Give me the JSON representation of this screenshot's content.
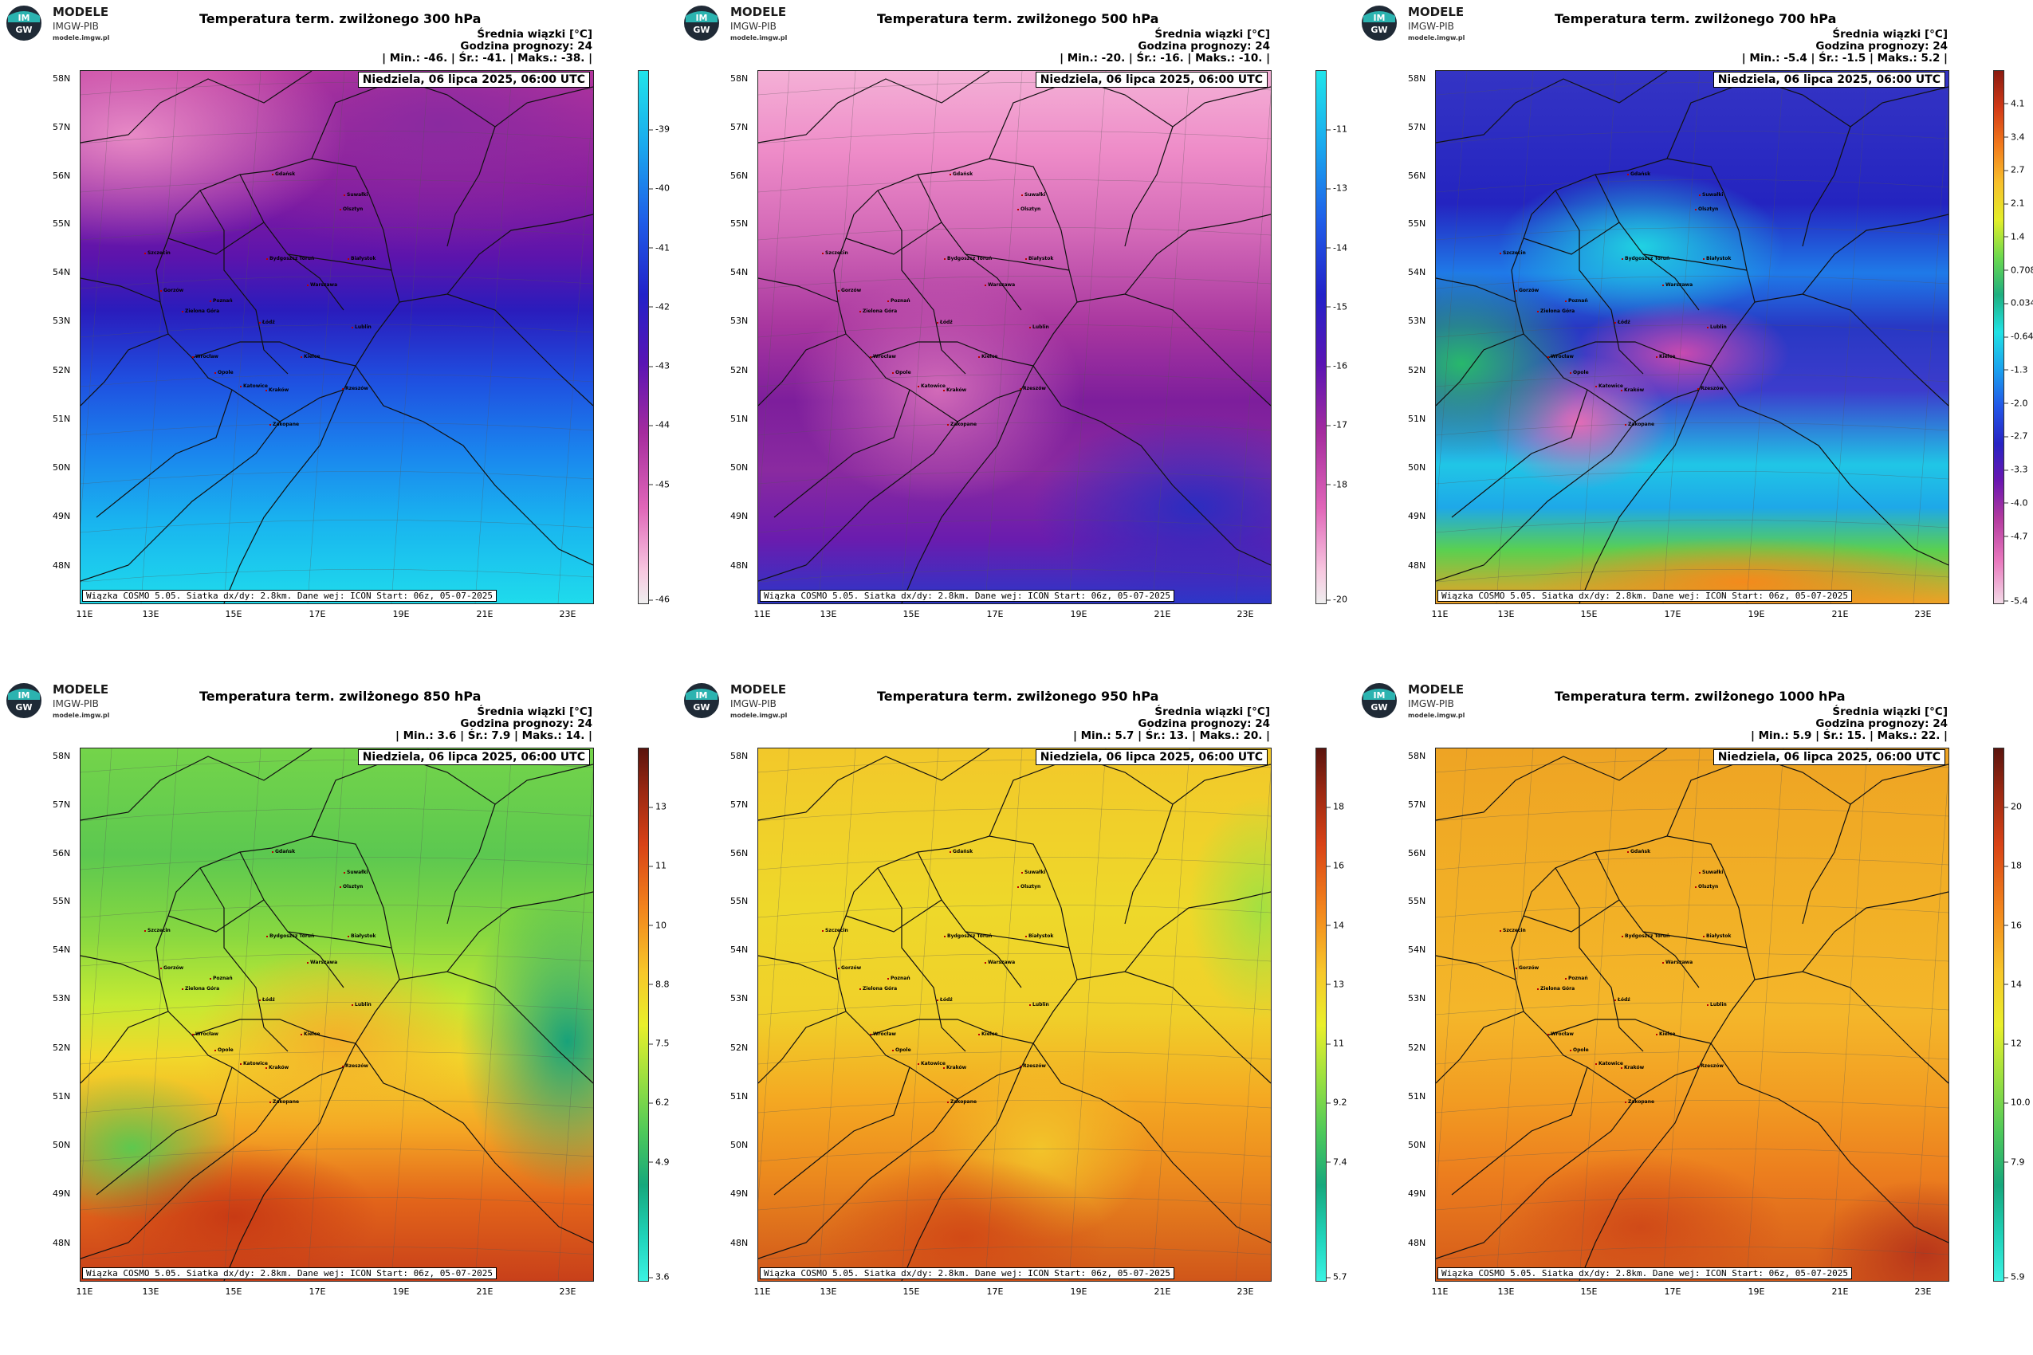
{
  "logo": {
    "line1": "MODELE",
    "line2": "IMGW-PIB",
    "line3": "modele.imgw.pl",
    "badge": "IMGW",
    "accent": "#2bb3b0"
  },
  "common": {
    "average_label": "Średnia wiązki [°C]",
    "lead_label": "Godzina prognozy: 24",
    "date": "Niedziela, 06 lipca 2025, 06:00 UTC",
    "footer": "Wiązka COSMO 5.05. Siatka dx/dy: 2.8km. Dane wej: ICON Start: 06z, 05-07-2025",
    "lat_labels": [
      "58N",
      "57N",
      "56N",
      "55N",
      "54N",
      "53N",
      "52N",
      "51N",
      "50N",
      "49N",
      "48N"
    ],
    "lon_labels": [
      "11E",
      "13E",
      "15E",
      "17E",
      "19E",
      "21E",
      "23E"
    ],
    "cities": [
      "Gdańsk",
      "Suwałki",
      "Olsztyn",
      "Szczecin",
      "Bydgoszcz Toruń",
      "Białystok",
      "Gorzów",
      "Poznań",
      "Warszawa",
      "Zielona Góra",
      "Łódź",
      "Lublin",
      "Wrocław",
      "Kielce",
      "Opole",
      "Katowice",
      "Kraków",
      "Rzeszów",
      "Zakopane"
    ]
  },
  "panels": [
    {
      "title": "Temperatura term. zwilżonego 300 hPa",
      "stats": "| Min.:    -46. | Śr.:    -41. | Maks.:   -38. |",
      "palette": "cold",
      "cbar": [
        "-39",
        "-40",
        "-41",
        "-42",
        "-43",
        "-44",
        "-45",
        "-46"
      ]
    },
    {
      "title": "Temperatura term. zwilżonego 500 hPa",
      "stats": "| Min.:    -20. | Śr.:    -16. | Maks.:   -10. |",
      "palette": "cold",
      "cbar": [
        "-11",
        "-13",
        "-14",
        "-15",
        "-16",
        "-17",
        "-18",
        "-20"
      ]
    },
    {
      "title": "Temperatura term. zwilżonego 700 hPa",
      "stats": "| Min.:    -5.4 | Śr.:    -1.5 | Maks.:    5.2 |",
      "palette": "full",
      "cbar": [
        "4.1",
        "3.4",
        "2.7",
        "2.1",
        "1.4",
        "0.708",
        "0.034",
        "-0.641",
        "-1.3",
        "-2.0",
        "-2.7",
        "-3.3",
        "-4.0",
        "-4.7",
        "-5.4"
      ]
    },
    {
      "title": "Temperatura term. zwilżonego 850 hPa",
      "stats": "| Min.:     3.6 | Śr.:     7.9 | Maks.:    14. |",
      "palette": "warm",
      "cbar": [
        "13",
        "11",
        "10",
        "8.8",
        "7.5",
        "6.2",
        "4.9",
        "3.6"
      ]
    },
    {
      "title": "Temperatura term. zwilżonego 950 hPa",
      "stats": "| Min.:     5.7 | Śr.:     13. | Maks.:    20. |",
      "palette": "warm",
      "cbar": [
        "18",
        "16",
        "14",
        "13",
        "11",
        "9.2",
        "7.4",
        "5.7"
      ]
    },
    {
      "title": "Temperatura term. zwilżonego 1000 hPa",
      "stats": "| Min.:     5.9 | Śr.:     15. | Maks.:    22. |",
      "palette": "warm",
      "cbar": [
        "20",
        "18",
        "16",
        "14",
        "12",
        "10.0",
        "7.9",
        "5.9"
      ]
    }
  ]
}
